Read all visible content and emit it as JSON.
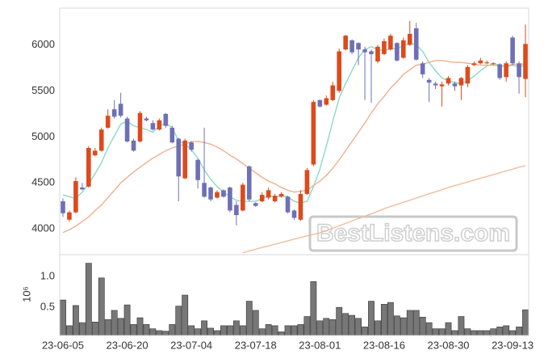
{
  "chart_data": [
    {
      "type": "candlestick",
      "open": [
        4300,
        4100,
        4180,
        4450,
        4460,
        4800,
        4850,
        5100,
        5300,
        5360,
        5200,
        4960,
        4950,
        5200,
        5150,
        5080,
        5250,
        5100,
        4980,
        4550,
        4940,
        4750,
        4500,
        4450,
        4340,
        4420,
        4450,
        4260,
        4200,
        4680,
        4280,
        4300,
        4340,
        4300,
        4350,
        4350,
        4200,
        4100,
        4380,
        4700,
        5400,
        5350,
        5400,
        5500,
        5950,
        6050,
        6020,
        5950,
        5930,
        5820,
        5900,
        5950,
        6020,
        5860,
        6000,
        6180,
        5800,
        5620,
        5580,
        5550,
        5580,
        5580,
        5560,
        5580,
        5780,
        5800,
        5800,
        5790,
        5790,
        5650,
        6080,
        5800,
        5630
      ],
      "high": [
        4330,
        4200,
        4560,
        4500,
        4900,
        4880,
        5100,
        5300,
        5400,
        5480,
        5220,
        4980,
        5280,
        5220,
        5180,
        5200,
        5260,
        5120,
        4990,
        4980,
        4950,
        4760,
        5100,
        4460,
        4420,
        4430,
        4460,
        4300,
        4500,
        4690,
        4290,
        4400,
        4450,
        4380,
        4400,
        4360,
        4210,
        4420,
        4660,
        5400,
        5410,
        5450,
        5600,
        5960,
        6110,
        6060,
        6030,
        5980,
        5950,
        6000,
        6070,
        6120,
        6030,
        6080,
        6260,
        6240,
        5820,
        5640,
        5600,
        5600,
        5660,
        5600,
        5650,
        5780,
        5820,
        5860,
        5830,
        5810,
        5800,
        5820,
        6100,
        5820,
        6220
      ],
      "low": [
        4130,
        4080,
        4170,
        4420,
        4450,
        4790,
        4840,
        5090,
        5200,
        5210,
        4940,
        4840,
        4940,
        5170,
        5070,
        5070,
        5100,
        4930,
        4300,
        4540,
        4840,
        4440,
        4340,
        4300,
        4330,
        4340,
        4180,
        4040,
        4190,
        4300,
        4240,
        4290,
        4320,
        4290,
        4340,
        4170,
        4100,
        4090,
        4370,
        4680,
        5320,
        5340,
        5390,
        5480,
        5940,
        5900,
        5780,
        5400,
        5370,
        5800,
        5890,
        5940,
        5820,
        5850,
        5990,
        5830,
        5640,
        5380,
        5520,
        5330,
        5560,
        5500,
        5400,
        5540,
        5770,
        5790,
        5790,
        5780,
        5620,
        5600,
        5780,
        5470,
        5430
      ],
      "close": [
        4170,
        4180,
        4520,
        4430,
        4880,
        4850,
        5080,
        5230,
        5220,
        5230,
        4950,
        4850,
        5260,
        5180,
        5080,
        5180,
        5120,
        4940,
        4570,
        4960,
        4860,
        4530,
        4350,
        4320,
        4400,
        4350,
        4200,
        4150,
        4480,
        4320,
        4250,
        4370,
        4420,
        4360,
        4380,
        4180,
        4120,
        4380,
        4640,
        5380,
        5330,
        5420,
        5560,
        5930,
        6100,
        5920,
        5950,
        5920,
        5900,
        5980,
        6040,
        6100,
        5830,
        6050,
        6120,
        5840,
        5680,
        5590,
        5560,
        5570,
        5640,
        5550,
        5640,
        5760,
        5800,
        5830,
        5810,
        5800,
        5640,
        5800,
        5800,
        5650,
        6010
      ],
      "up_color": "#dd4a1c",
      "down_color": "#6e70b5",
      "series": [
        {
          "color": "#82d6c2",
          "values": [
            4370,
            4350,
            4330,
            4400,
            4490,
            4600,
            4720,
            4880,
            5010,
            5140,
            5170,
            5120,
            5100,
            5080,
            5050,
            5120,
            5150,
            5100,
            4960,
            4920,
            4860,
            4770,
            4640,
            4540,
            4460,
            4400,
            4350,
            4310,
            4300,
            4300,
            4300,
            4330,
            4360,
            4350,
            4360,
            4350,
            4300,
            4280,
            4300,
            4460,
            4650,
            4900,
            5170,
            5420,
            5580,
            5720,
            5860,
            5950,
            5980,
            5950,
            5940,
            5960,
            5960,
            5990,
            6020,
            6000,
            5930,
            5810,
            5720,
            5640,
            5610,
            5590,
            5580,
            5610,
            5660,
            5720,
            5770,
            5800,
            5780,
            5760,
            5780,
            5760,
            5780
          ]
        },
        {
          "color": "#eeaa88",
          "values": [
            3960,
            3990,
            4030,
            4080,
            4130,
            4200,
            4260,
            4340,
            4420,
            4500,
            4560,
            4620,
            4670,
            4720,
            4770,
            4810,
            4850,
            4880,
            4900,
            4920,
            4950,
            4950,
            4940,
            4920,
            4890,
            4850,
            4800,
            4760,
            4710,
            4660,
            4610,
            4560,
            4520,
            4490,
            4450,
            4420,
            4400,
            4410,
            4420,
            4470,
            4520,
            4580,
            4660,
            4750,
            4850,
            4950,
            5050,
            5150,
            5260,
            5360,
            5440,
            5530,
            5600,
            5680,
            5730,
            5780,
            5790,
            5810,
            5830,
            5830,
            5820,
            5810,
            5810,
            5800,
            5790,
            5780,
            5780,
            5780,
            5770,
            5770,
            5790,
            5790,
            5790
          ]
        },
        {
          "color": "#f0b898",
          "values": [
            null,
            null,
            null,
            null,
            null,
            null,
            null,
            null,
            null,
            null,
            null,
            null,
            null,
            null,
            null,
            null,
            null,
            null,
            null,
            null,
            null,
            null,
            null,
            null,
            null,
            null,
            null,
            null,
            3740,
            3760,
            3780,
            3798,
            3816,
            3834,
            3852,
            3870,
            3888,
            3906,
            3924,
            3942,
            3956,
            3982,
            4008,
            4034,
            4060,
            4086,
            4112,
            4138,
            4164,
            4190,
            4220,
            4243,
            4266,
            4289,
            4312,
            4335,
            4358,
            4381,
            4404,
            4427,
            4450,
            4470,
            4490,
            4510,
            4530,
            4550,
            4570,
            4590,
            4610,
            4630,
            4650,
            4670,
            4687
          ]
        }
      ],
      "ylim": [
        3720,
        6400
      ],
      "yticks": [
        4000,
        4500,
        5000,
        5500,
        6000
      ],
      "grid": true,
      "watermark": "BestListens.com"
    },
    {
      "type": "bar",
      "categories": [
        "23-06-05",
        null,
        null,
        null,
        null,
        null,
        null,
        null,
        null,
        null,
        "23-06-20",
        null,
        null,
        null,
        null,
        null,
        null,
        null,
        null,
        null,
        "23-07-04",
        null,
        null,
        null,
        null,
        null,
        null,
        null,
        null,
        null,
        "23-07-18",
        null,
        null,
        null,
        null,
        null,
        null,
        null,
        null,
        null,
        "23-08-01",
        null,
        null,
        null,
        null,
        null,
        null,
        null,
        null,
        null,
        "23-08-16",
        null,
        null,
        null,
        null,
        null,
        null,
        null,
        null,
        null,
        "23-08-30",
        null,
        null,
        null,
        null,
        null,
        null,
        null,
        null,
        null,
        "23-09-13",
        null,
        null
      ],
      "values": [
        0.62,
        0.2,
        0.53,
        0.25,
        1.22,
        0.26,
        0.98,
        0.3,
        0.45,
        0.32,
        0.54,
        0.22,
        0.33,
        0.22,
        0.15,
        0.12,
        0.11,
        0.22,
        0.52,
        0.7,
        0.2,
        0.15,
        0.28,
        0.16,
        0.12,
        0.2,
        0.2,
        0.28,
        0.2,
        0.6,
        0.45,
        0.15,
        0.22,
        0.2,
        0.1,
        0.2,
        0.2,
        0.22,
        0.35,
        0.92,
        0.28,
        0.32,
        0.3,
        0.5,
        0.4,
        0.37,
        0.32,
        0.18,
        0.6,
        0.28,
        0.55,
        0.58,
        0.36,
        0.33,
        0.45,
        0.45,
        0.34,
        0.25,
        0.15,
        0.15,
        0.25,
        0.12,
        0.35,
        0.15,
        0.12,
        0.12,
        0.12,
        0.15,
        0.18,
        0.2,
        0.12,
        0.18,
        0.46
      ],
      "color": "#777777",
      "ylim": [
        0.04,
        1.36
      ],
      "yticks": [
        0.5,
        {
          "value": 1.0,
          "label": "1.0"
        }
      ],
      "grid": true,
      "ylabel": "10⁶"
    }
  ]
}
